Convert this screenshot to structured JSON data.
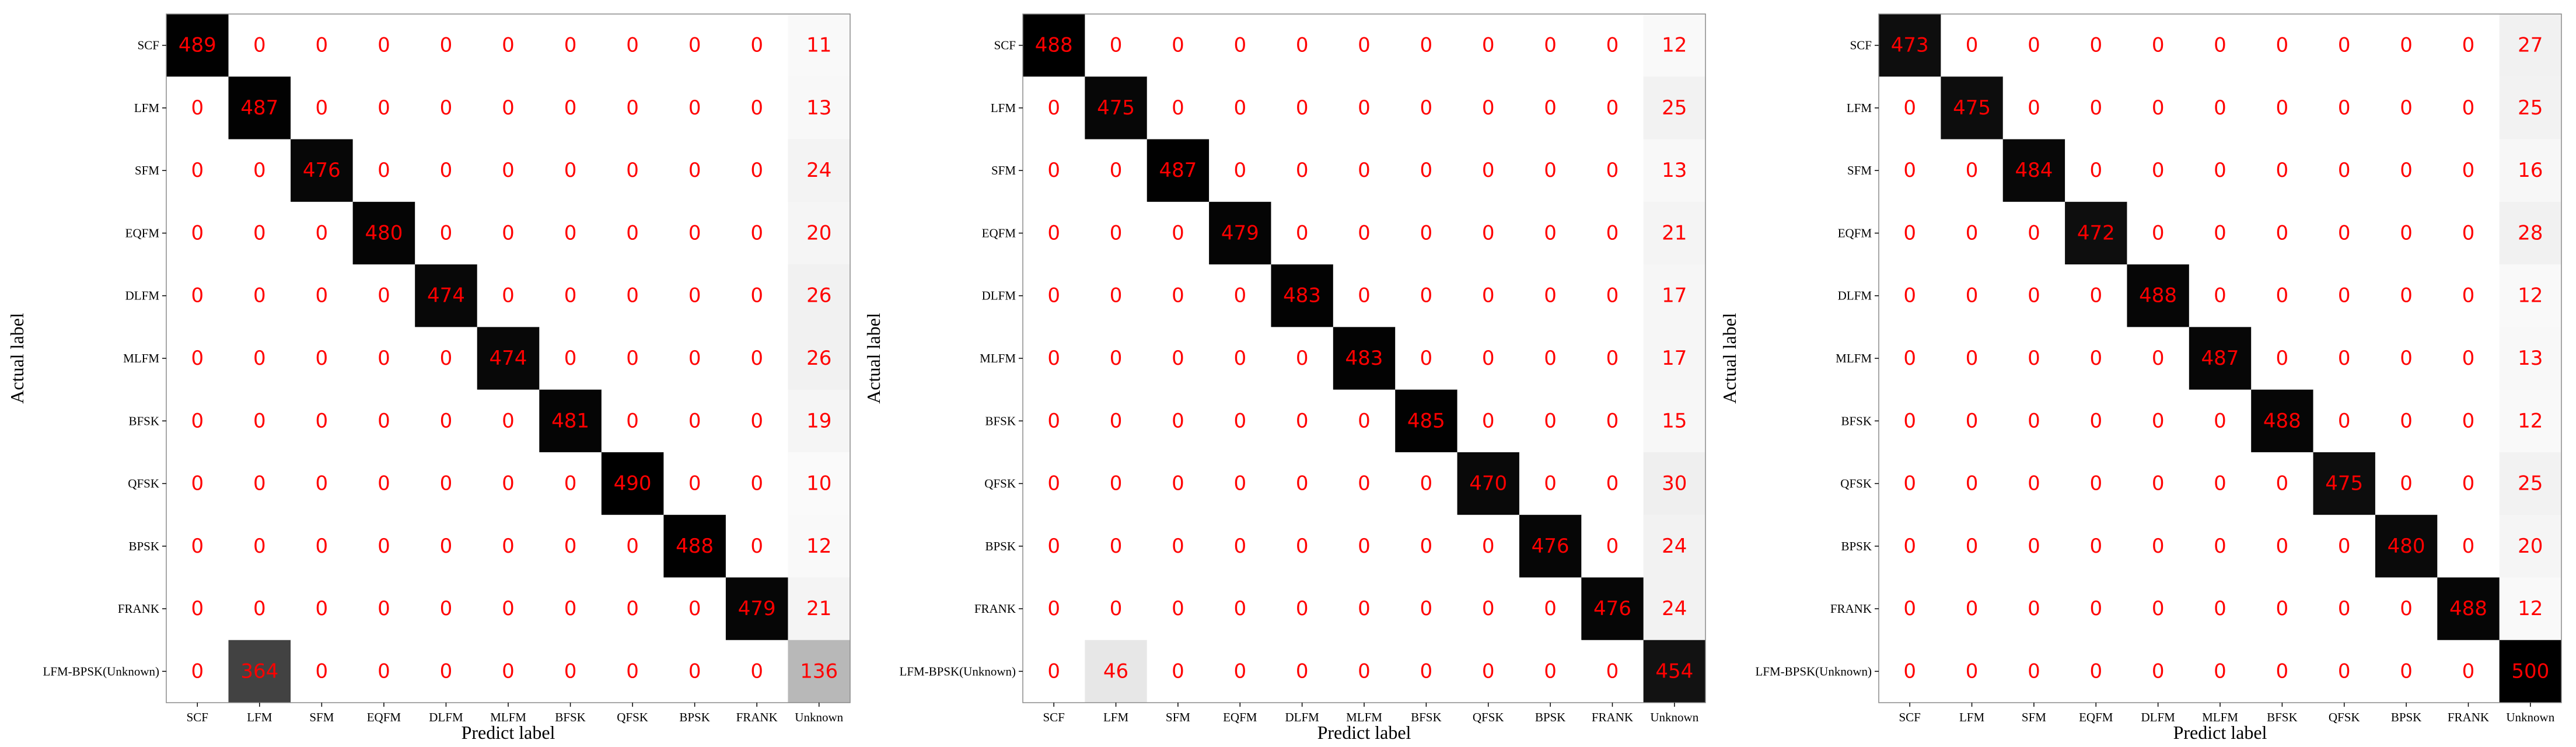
{
  "colors": {
    "value_text": "#ff0000",
    "cmap_low": "#ffffff",
    "cmap_high": "#000000",
    "frame": "#000000"
  },
  "chart_data": [
    {
      "type": "heatmap",
      "title": "",
      "xlabel": "Predict label",
      "ylabel": "Actual label",
      "x_categories": [
        "SCF",
        "LFM",
        "SFM",
        "EQFM",
        "DLFM",
        "MLFM",
        "BFSK",
        "QFSK",
        "BPSK",
        "FRANK",
        "Unknown"
      ],
      "y_categories": [
        "SCF",
        "LFM",
        "SFM",
        "EQFM",
        "DLFM",
        "MLFM",
        "BFSK",
        "QFSK",
        "BPSK",
        "FRANK",
        "LFM-BPSK(Unknown)"
      ],
      "vmin": 0,
      "vmax": 490,
      "values": [
        [
          489,
          0,
          0,
          0,
          0,
          0,
          0,
          0,
          0,
          0,
          11
        ],
        [
          0,
          487,
          0,
          0,
          0,
          0,
          0,
          0,
          0,
          0,
          13
        ],
        [
          0,
          0,
          476,
          0,
          0,
          0,
          0,
          0,
          0,
          0,
          24
        ],
        [
          0,
          0,
          0,
          480,
          0,
          0,
          0,
          0,
          0,
          0,
          20
        ],
        [
          0,
          0,
          0,
          0,
          474,
          0,
          0,
          0,
          0,
          0,
          26
        ],
        [
          0,
          0,
          0,
          0,
          0,
          474,
          0,
          0,
          0,
          0,
          26
        ],
        [
          0,
          0,
          0,
          0,
          0,
          0,
          481,
          0,
          0,
          0,
          19
        ],
        [
          0,
          0,
          0,
          0,
          0,
          0,
          0,
          490,
          0,
          0,
          10
        ],
        [
          0,
          0,
          0,
          0,
          0,
          0,
          0,
          0,
          488,
          0,
          12
        ],
        [
          0,
          0,
          0,
          0,
          0,
          0,
          0,
          0,
          0,
          479,
          21
        ],
        [
          0,
          364,
          0,
          0,
          0,
          0,
          0,
          0,
          0,
          0,
          136
        ]
      ]
    },
    {
      "type": "heatmap",
      "title": "",
      "xlabel": "Predict label",
      "ylabel": "Actual label",
      "x_categories": [
        "SCF",
        "LFM",
        "SFM",
        "EQFM",
        "DLFM",
        "MLFM",
        "BFSK",
        "QFSK",
        "BPSK",
        "FRANK",
        "Unknown"
      ],
      "y_categories": [
        "SCF",
        "LFM",
        "SFM",
        "EQFM",
        "DLFM",
        "MLFM",
        "BFSK",
        "QFSK",
        "BPSK",
        "FRANK",
        "LFM-BPSK(Unknown)"
      ],
      "vmin": 0,
      "vmax": 488,
      "values": [
        [
          488,
          0,
          0,
          0,
          0,
          0,
          0,
          0,
          0,
          0,
          12
        ],
        [
          0,
          475,
          0,
          0,
          0,
          0,
          0,
          0,
          0,
          0,
          25
        ],
        [
          0,
          0,
          487,
          0,
          0,
          0,
          0,
          0,
          0,
          0,
          13
        ],
        [
          0,
          0,
          0,
          479,
          0,
          0,
          0,
          0,
          0,
          0,
          21
        ],
        [
          0,
          0,
          0,
          0,
          483,
          0,
          0,
          0,
          0,
          0,
          17
        ],
        [
          0,
          0,
          0,
          0,
          0,
          483,
          0,
          0,
          0,
          0,
          17
        ],
        [
          0,
          0,
          0,
          0,
          0,
          0,
          485,
          0,
          0,
          0,
          15
        ],
        [
          0,
          0,
          0,
          0,
          0,
          0,
          0,
          470,
          0,
          0,
          30
        ],
        [
          0,
          0,
          0,
          0,
          0,
          0,
          0,
          0,
          476,
          0,
          24
        ],
        [
          0,
          0,
          0,
          0,
          0,
          0,
          0,
          0,
          0,
          476,
          24
        ],
        [
          0,
          46,
          0,
          0,
          0,
          0,
          0,
          0,
          0,
          0,
          454
        ]
      ]
    },
    {
      "type": "heatmap",
      "title": "",
      "xlabel": "Predict label",
      "ylabel": "Actual label",
      "x_categories": [
        "SCF",
        "LFM",
        "SFM",
        "EQFM",
        "DLFM",
        "MLFM",
        "BFSK",
        "QFSK",
        "BPSK",
        "FRANK",
        "Unknown"
      ],
      "y_categories": [
        "SCF",
        "LFM",
        "SFM",
        "EQFM",
        "DLFM",
        "MLFM",
        "BFSK",
        "QFSK",
        "BPSK",
        "FRANK",
        "LFM-BPSK(Unknown)"
      ],
      "vmin": 0,
      "vmax": 500,
      "values": [
        [
          473,
          0,
          0,
          0,
          0,
          0,
          0,
          0,
          0,
          0,
          27
        ],
        [
          0,
          475,
          0,
          0,
          0,
          0,
          0,
          0,
          0,
          0,
          25
        ],
        [
          0,
          0,
          484,
          0,
          0,
          0,
          0,
          0,
          0,
          0,
          16
        ],
        [
          0,
          0,
          0,
          472,
          0,
          0,
          0,
          0,
          0,
          0,
          28
        ],
        [
          0,
          0,
          0,
          0,
          488,
          0,
          0,
          0,
          0,
          0,
          12
        ],
        [
          0,
          0,
          0,
          0,
          0,
          487,
          0,
          0,
          0,
          0,
          13
        ],
        [
          0,
          0,
          0,
          0,
          0,
          0,
          488,
          0,
          0,
          0,
          12
        ],
        [
          0,
          0,
          0,
          0,
          0,
          0,
          0,
          475,
          0,
          0,
          25
        ],
        [
          0,
          0,
          0,
          0,
          0,
          0,
          0,
          0,
          480,
          0,
          20
        ],
        [
          0,
          0,
          0,
          0,
          0,
          0,
          0,
          0,
          0,
          488,
          12
        ],
        [
          0,
          0,
          0,
          0,
          0,
          0,
          0,
          0,
          0,
          0,
          500
        ]
      ]
    }
  ]
}
